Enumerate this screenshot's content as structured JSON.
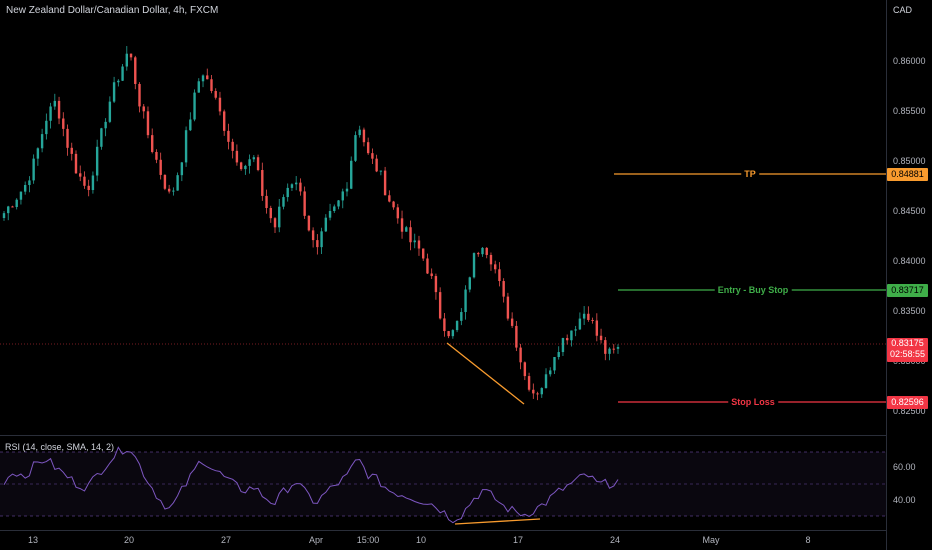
{
  "header": {
    "title": "New Zealand Dollar/Canadian Dollar, 4h, FXCM",
    "currency": "CAD"
  },
  "price_axis": {
    "ticks": [
      "0.86000",
      "0.85500",
      "0.85000",
      "0.84500",
      "0.84000",
      "0.83500",
      "0.83000",
      "0.82500"
    ]
  },
  "levels": {
    "tp": {
      "label": "TP",
      "price": "0.84881",
      "color": "#f89b2e"
    },
    "entry": {
      "label": "Entry - Buy Stop",
      "price": "0.83717",
      "color": "#3fae49"
    },
    "stop": {
      "label": "Stop Loss",
      "price": "0.82596",
      "color": "#f23645"
    }
  },
  "current": {
    "price": "0.83175",
    "countdown": "02:58:55",
    "color": "#f23645"
  },
  "time_axis": {
    "ticks": [
      "13",
      "20",
      "27",
      "Apr",
      "15:00",
      "10",
      "17",
      "24",
      "May",
      "8"
    ]
  },
  "rsi": {
    "label": "RSI (14, close, SMA, 14, 2)",
    "ticks": [
      "60.00",
      "40.00"
    ],
    "line_color": "#7e57c2",
    "band_color": "#7e57c2"
  },
  "colors": {
    "bull": "#26a69a",
    "bear": "#ef5350",
    "divergence": "#f89b2e"
  },
  "chart_data": {
    "type": "candlestick",
    "title": "New Zealand Dollar/Canadian Dollar, 4h, FXCM",
    "ylim": [
      0.8245,
      0.8625
    ],
    "x_ticks": [
      "13",
      "20",
      "27",
      "Apr",
      "15:00",
      "10",
      "17",
      "24",
      "May",
      "8"
    ],
    "close_path": [
      0.8448,
      0.8462,
      0.8475,
      0.8501,
      0.8542,
      0.856,
      0.852,
      0.849,
      0.847,
      0.851,
      0.8555,
      0.8585,
      0.8612,
      0.856,
      0.852,
      0.849,
      0.8462,
      0.85,
      0.855,
      0.8592,
      0.857,
      0.854,
      0.851,
      0.8495,
      0.8502,
      0.846,
      0.8433,
      0.847,
      0.8485,
      0.8446,
      0.8405,
      0.844,
      0.8455,
      0.848,
      0.8542,
      0.8505,
      0.849,
      0.8462,
      0.844,
      0.842,
      0.841,
      0.8385,
      0.8342,
      0.8325,
      0.8348,
      0.84,
      0.842,
      0.8399,
      0.836,
      0.833,
      0.8286,
      0.8267,
      0.828,
      0.8312,
      0.8325,
      0.8338,
      0.8352,
      0.8325,
      0.8305,
      0.8312
    ],
    "current_price": 0.83175,
    "levels": {
      "TP": 0.84881,
      "Entry - Buy Stop": 0.83717,
      "Stop Loss": 0.82596
    },
    "rsi": {
      "label": "RSI (14, close, SMA, 14, 2)",
      "ylim": [
        20,
        80
      ],
      "bands": [
        70,
        30
      ],
      "ticks": [
        60,
        40
      ],
      "values": [
        52,
        58,
        55,
        62,
        66,
        60,
        55,
        50,
        48,
        56,
        64,
        70,
        74,
        62,
        50,
        40,
        34,
        45,
        55,
        66,
        60,
        55,
        50,
        46,
        48,
        42,
        38,
        46,
        52,
        44,
        38,
        45,
        50,
        55,
        66,
        56,
        52,
        46,
        44,
        42,
        40,
        38,
        34,
        28,
        31,
        40,
        46,
        42,
        36,
        33,
        31,
        34,
        38,
        44,
        48,
        52,
        56,
        50,
        50,
        52
      ]
    }
  }
}
